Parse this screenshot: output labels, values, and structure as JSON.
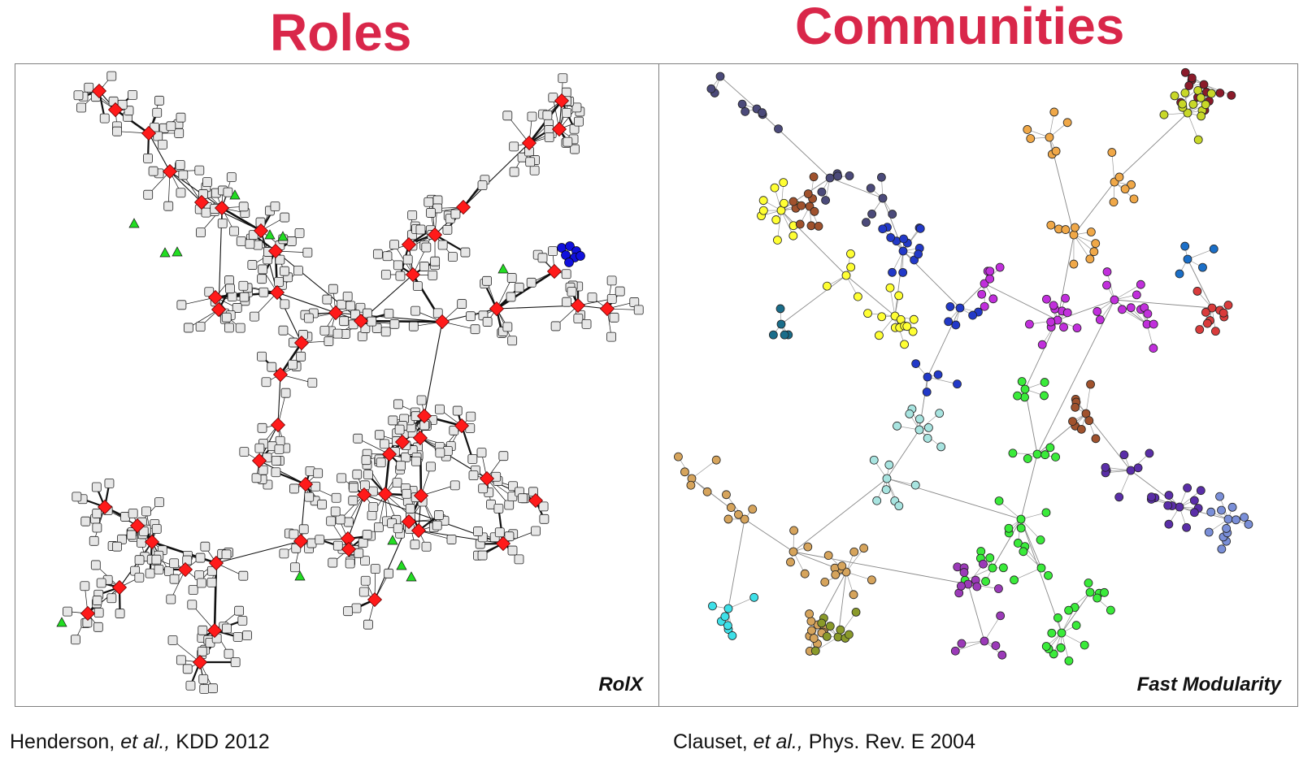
{
  "headings": {
    "left": "Roles",
    "right": "Communities"
  },
  "panels": {
    "left": {
      "method_label": "RolX",
      "node_colors": {
        "bridge_role": "#ff1a1a",
        "periphery_role": "#e6e6e6",
        "green_role": "#22dd22",
        "blue_role": "#1010dd"
      }
    },
    "right": {
      "method_label": "Fast Modularity",
      "community_colors": [
        "#4b4a7a",
        "#2239c8",
        "#ffff33",
        "#c12fdc",
        "#f0a848",
        "#1a6d8a",
        "#a0522d",
        "#3aeb3a",
        "#a8e4e0",
        "#d6a45c",
        "#3de0e8",
        "#5a2ea8",
        "#d93b3b",
        "#1b6fc8",
        "#7a8fd8",
        "#8b1a2a",
        "#c8d828",
        "#8a9a2a",
        "#9b3ab8"
      ]
    }
  },
  "citations": {
    "left": {
      "authors": "Henderson, ",
      "etal": "et al.,",
      "venue": " KDD 2012"
    },
    "right": {
      "authors": "Clauset, ",
      "etal": "et al.,",
      "venue": " Phys. Rev. E 2004"
    }
  }
}
